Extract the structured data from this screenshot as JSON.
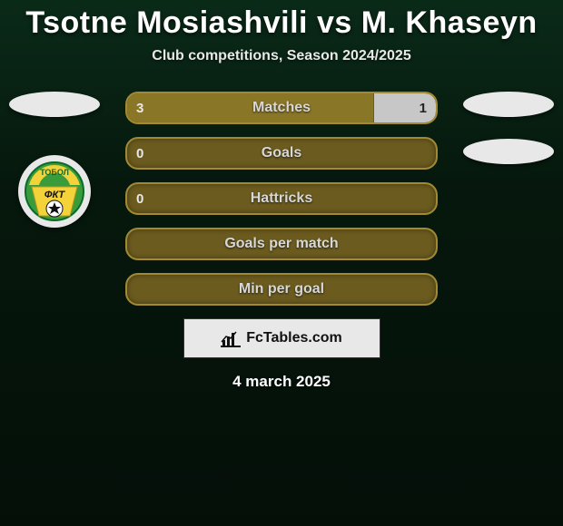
{
  "header": {
    "title": "Tsotne Mosiashvili vs M. Khaseyn",
    "subtitle": "Club competitions, Season 2024/2025"
  },
  "stats": [
    {
      "label": "Matches",
      "left_value": "3",
      "right_value": "1",
      "left_pct": 80,
      "right_pct": 20,
      "left_color": "#8a7627",
      "right_color": "#c7c7c7",
      "show_right": true
    },
    {
      "label": "Goals",
      "left_value": "0",
      "right_value": "",
      "left_pct": 0,
      "right_pct": 0,
      "left_color": "#8a7627",
      "right_color": "#c7c7c7",
      "show_right": false
    },
    {
      "label": "Hattricks",
      "left_value": "0",
      "right_value": "",
      "left_pct": 0,
      "right_pct": 0,
      "left_color": "#8a7627",
      "right_color": "#c7c7c7",
      "show_right": false
    },
    {
      "label": "Goals per match",
      "left_value": "",
      "right_value": "",
      "left_pct": 0,
      "right_pct": 0,
      "left_color": "#8a7627",
      "right_color": "#c7c7c7",
      "show_right": false
    },
    {
      "label": "Min per goal",
      "left_value": "",
      "right_value": "",
      "left_pct": 0,
      "right_pct": 0,
      "left_color": "#8a7627",
      "right_color": "#c7c7c7",
      "show_right": false
    }
  ],
  "branding": {
    "site_label": "FcTables.com",
    "icon_name": "chart-bars-icon"
  },
  "date": "4 march 2025",
  "players": {
    "left_badge_label": "ТОБОЛ",
    "left_badge_colors": [
      "#3a9b3a",
      "#f4d23a",
      "#111"
    ]
  },
  "styling": {
    "bar_border_color": "#a18a33",
    "bar_bg_color": "#6b5b1f",
    "title_fontsize": 34,
    "subtitle_fontsize": 16,
    "label_fontsize": 16,
    "value_fontsize": 15,
    "date_fontsize": 17,
    "background_gradient": [
      "#0a2a18",
      "#06180d",
      "#040f08"
    ]
  }
}
